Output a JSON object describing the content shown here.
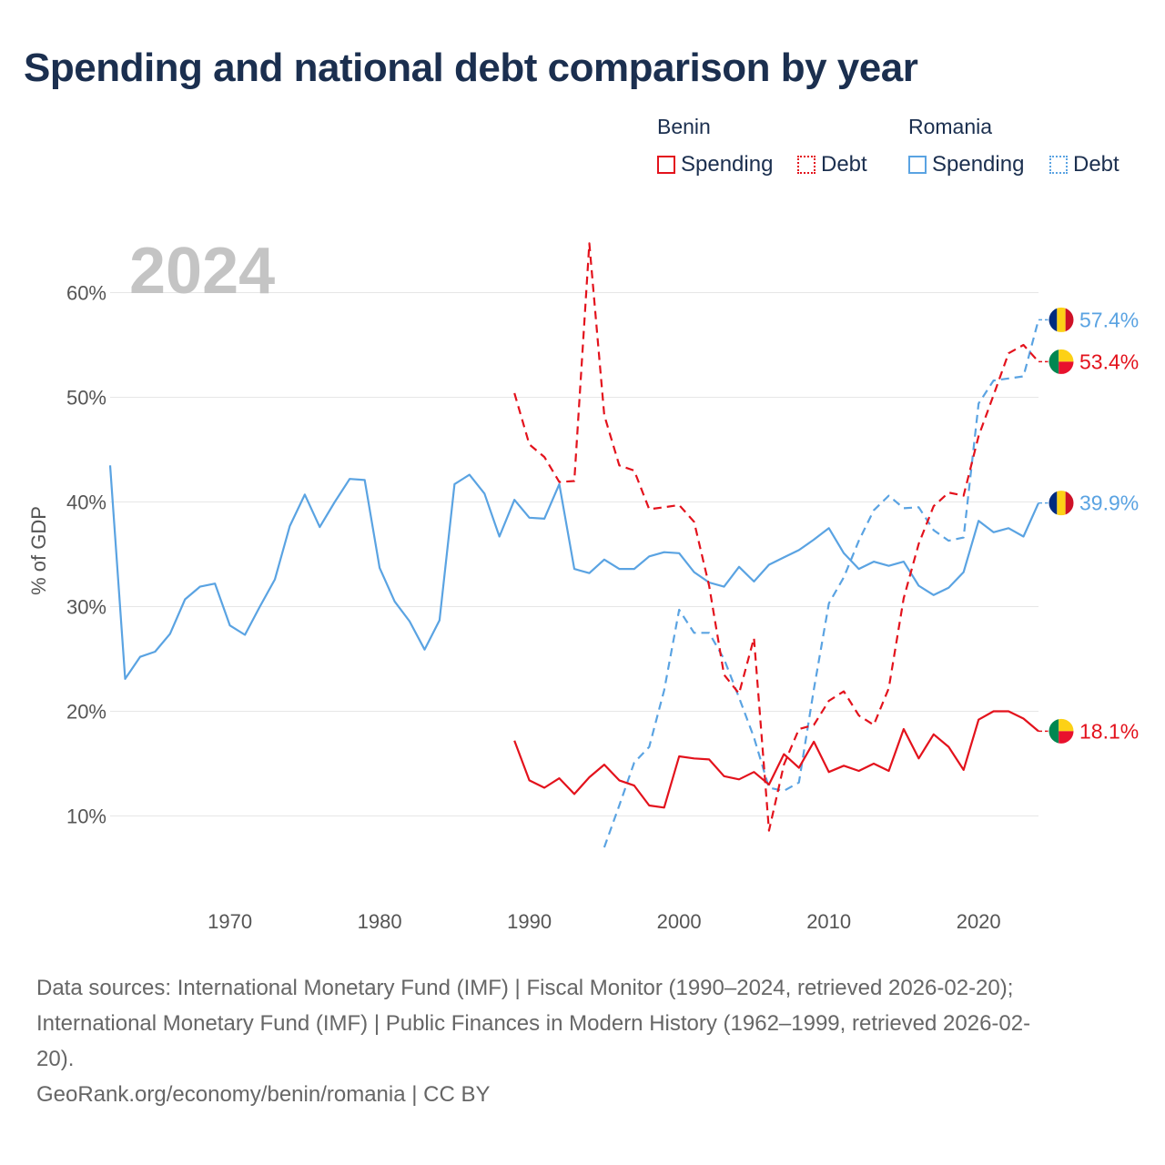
{
  "chart_data": {
    "type": "line",
    "title": "Spending and national debt comparison by year",
    "year_label": "2024",
    "ylabel": "% of GDP",
    "xlim": [
      1962,
      2024
    ],
    "ylim": [
      3,
      65
    ],
    "y_ticks": [
      10,
      20,
      30,
      40,
      50,
      60
    ],
    "y_tick_labels": [
      "10%",
      "20%",
      "30%",
      "40%",
      "50%",
      "60%"
    ],
    "x_ticks": [
      1970,
      1980,
      1990,
      2000,
      2010,
      2020
    ],
    "x_tick_labels": [
      "1970",
      "1980",
      "1990",
      "2000",
      "2010",
      "2020"
    ],
    "legend": {
      "groups": [
        {
          "country": "Benin",
          "items": [
            {
              "label": "Spending",
              "style": "solid"
            },
            {
              "label": "Debt",
              "style": "dotted"
            }
          ]
        },
        {
          "country": "Romania",
          "items": [
            {
              "label": "Spending",
              "style": "solid"
            },
            {
              "label": "Debt",
              "style": "dotted"
            }
          ]
        }
      ]
    },
    "colors": {
      "benin": "#e3121c",
      "romania": "#5aa3e2"
    },
    "series": [
      {
        "name": "Romania Spending",
        "country": "Romania",
        "metric": "Spending",
        "dash": false,
        "color": "#5aa3e2",
        "start_year": 1962,
        "end_label": "39.9%",
        "values": [
          43.5,
          23.1,
          25.2,
          25.7,
          27.4,
          30.7,
          31.9,
          32.2,
          28.2,
          27.3,
          30.0,
          32.6,
          37.7,
          40.7,
          37.6,
          40.0,
          42.2,
          42.1,
          33.7,
          30.5,
          28.6,
          25.9,
          28.7,
          41.7,
          42.6,
          40.8,
          36.7,
          40.2,
          38.5,
          38.4,
          41.7,
          33.6,
          33.2,
          34.5,
          33.6,
          33.6,
          34.8,
          35.2,
          35.1,
          33.3,
          32.3,
          31.9,
          33.8,
          32.4,
          34.0,
          34.7,
          35.4,
          36.4,
          37.5,
          35.1,
          33.6,
          34.3,
          33.9,
          34.3,
          32.0,
          31.1,
          31.8,
          33.3,
          38.2,
          37.1,
          37.5,
          36.7,
          39.9
        ]
      },
      {
        "name": "Romania Debt",
        "country": "Romania",
        "metric": "Debt",
        "dash": true,
        "color": "#5aa3e2",
        "start_year": 1995,
        "end_label": "57.4%",
        "values": [
          7.0,
          11.0,
          15.1,
          16.6,
          22.0,
          29.7,
          27.5,
          27.5,
          25.0,
          21.3,
          17.5,
          12.7,
          12.4,
          13.2,
          22.1,
          30.3,
          32.8,
          36.3,
          39.2,
          40.6,
          39.4,
          39.5,
          37.3,
          36.3,
          36.6,
          49.4,
          51.6,
          51.8,
          52.0,
          57.4
        ]
      },
      {
        "name": "Benin Spending",
        "country": "Benin",
        "metric": "Spending",
        "dash": false,
        "color": "#e3121c",
        "start_year": 1989,
        "end_label": "18.1%",
        "values": [
          17.2,
          13.4,
          12.7,
          13.6,
          12.1,
          13.7,
          14.9,
          13.4,
          12.9,
          11.0,
          10.8,
          15.7,
          15.5,
          15.4,
          13.8,
          13.5,
          14.2,
          13.0,
          15.9,
          14.6,
          17.1,
          14.2,
          14.8,
          14.3,
          15.0,
          14.3,
          18.3,
          15.5,
          17.8,
          16.6,
          14.4,
          19.2,
          20.0,
          20.0,
          19.3,
          18.1
        ]
      },
      {
        "name": "Benin Debt",
        "country": "Benin",
        "metric": "Debt",
        "dash": true,
        "color": "#e3121c",
        "start_year": 1989,
        "end_label": "53.4%",
        "values": [
          50.4,
          45.5,
          44.3,
          41.9,
          42.0,
          64.7,
          48.3,
          43.5,
          43.0,
          39.3,
          39.5,
          39.7,
          38.1,
          32.0,
          23.5,
          21.7,
          27.0,
          8.6,
          14.9,
          18.3,
          18.7,
          21.0,
          21.9,
          19.6,
          18.7,
          22.2,
          30.8,
          36.0,
          39.6,
          40.9,
          40.6,
          46.3,
          50.2,
          54.2,
          55.0,
          53.4
        ]
      }
    ]
  },
  "sources": {
    "line1": "Data sources: International Monetary Fund (IMF) | Fiscal Monitor (1990–2024, retrieved 2026-02-20);",
    "line2": "International Monetary Fund (IMF) | Public Finances in Modern History (1962–1999, retrieved 2026-02-",
    "line3": "20).",
    "line4": "GeoRank.org/economy/benin/romania | CC BY"
  }
}
